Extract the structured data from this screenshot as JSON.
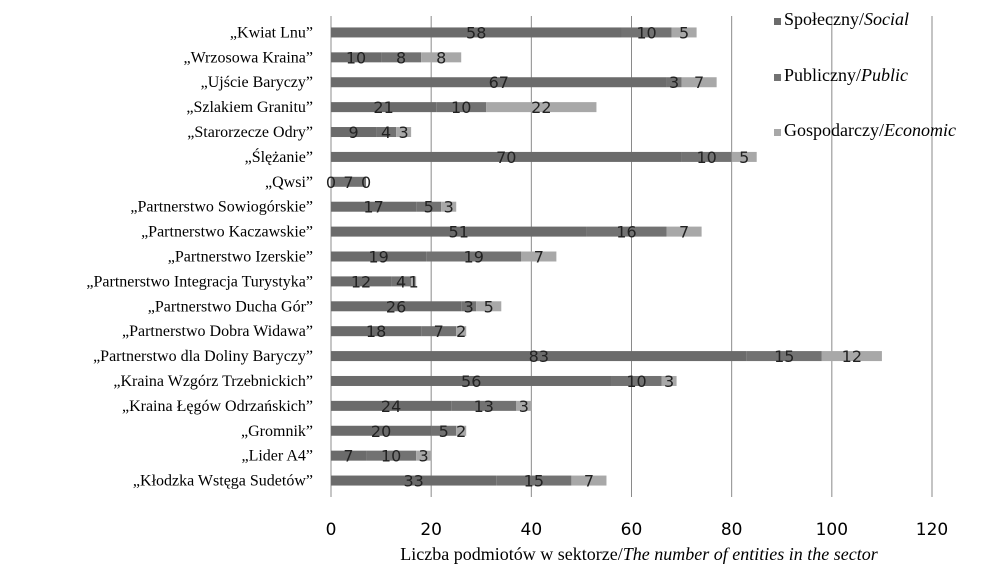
{
  "chart_data": {
    "type": "bar",
    "orientation": "horizontal",
    "stacked": true,
    "categories": [
      "„Kwiat Lnu”",
      "„Wrzosowa Kraina”",
      "„Ujście Baryczy”",
      "„Szlakiem Granitu”",
      "„Starorzecze Odry”",
      "„Ślężanie”",
      "„Qwsi”",
      "„Partnerstwo Sowiogórskie”",
      "„Partnerstwo Kaczawskie”",
      "„Partnerstwo Izerskie”",
      "„Partnerstwo Integracja Turystyka”",
      "„Partnerstwo Ducha Gór”",
      "„Partnerstwo Dobra Widawa”",
      "„Partnerstwo dla Doliny Baryczy”",
      "„Kraina Wzgórz Trzebnickich”",
      "„Kraina Łęgów Odrzańskich”",
      "„Gromnik”",
      "„Lider A4”",
      "„Kłodzka Wstęga Sudetów”"
    ],
    "series": [
      {
        "name": "Społeczny/Social",
        "name_main": "Społeczny/",
        "name_italic": "Social",
        "color": "#6b6b6b",
        "values": [
          58,
          10,
          67,
          21,
          9,
          70,
          0,
          17,
          51,
          19,
          12,
          26,
          18,
          83,
          56,
          24,
          20,
          7,
          33
        ]
      },
      {
        "name": "Publiczny/Public",
        "name_main": "Publiczny/",
        "name_italic": "Public",
        "color": "#727272",
        "values": [
          10,
          8,
          3,
          10,
          4,
          10,
          7,
          5,
          16,
          19,
          4,
          3,
          7,
          15,
          10,
          13,
          5,
          10,
          15
        ]
      },
      {
        "name": "Gospodarczy/Economic",
        "name_main": "Gospodarczy/",
        "name_italic": "Economic",
        "color": "#a8a8a8",
        "values": [
          5,
          8,
          7,
          22,
          3,
          5,
          0,
          3,
          7,
          7,
          1,
          5,
          2,
          12,
          3,
          3,
          2,
          3,
          7
        ]
      }
    ],
    "xlim": [
      0,
      120
    ],
    "x_ticks": [
      "0",
      "20",
      "40",
      "60",
      "80",
      "100",
      "120"
    ],
    "xlabel_main": "Liczba podmiotów w sektorze/",
    "xlabel_italic": "The number of entities in the sector",
    "grid": "vertical",
    "legend_position": "right"
  }
}
